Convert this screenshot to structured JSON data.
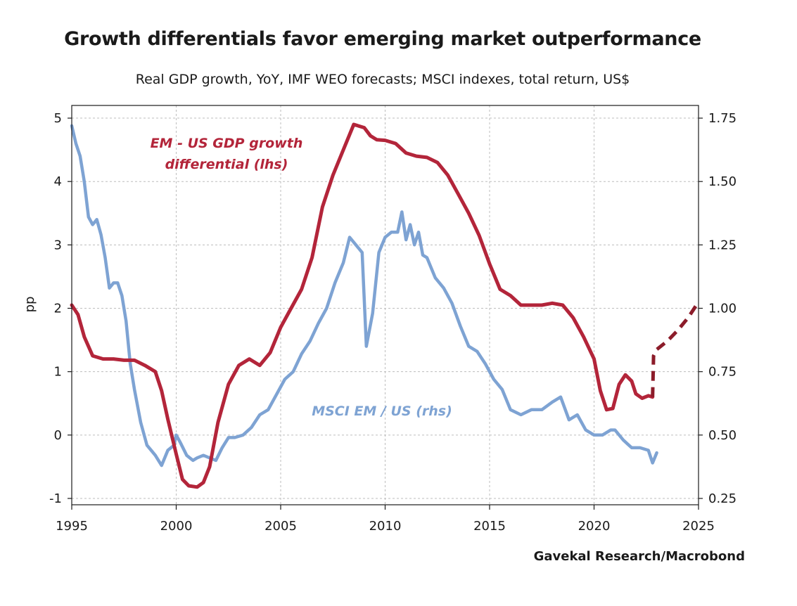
{
  "chart_data": {
    "type": "line",
    "title": "Growth differentials favor emerging market outperformance",
    "subtitle": "Real GDP growth, YoY, IMF WEO forecasts; MSCI indexes, total return, US$",
    "source": "Gavekal Research/Macrobond",
    "xlim": [
      1995,
      2025
    ],
    "x_ticks": [
      "1995",
      "2000",
      "2005",
      "2010",
      "2015",
      "2020",
      "2025"
    ],
    "y_left": {
      "label": "pp",
      "lim": [
        -1.1,
        5.2
      ],
      "ticks": [
        "-1",
        "0",
        "1",
        "2",
        "3",
        "4",
        "5"
      ]
    },
    "y_right": {
      "label": "",
      "lim": [
        0.225,
        1.8
      ],
      "ticks": [
        "0.25",
        "0.50",
        "0.75",
        "1.00",
        "1.25",
        "1.50",
        "1.75"
      ]
    },
    "grid": true,
    "series": [
      {
        "name": "EM - US GDP growth differential (lhs)",
        "axis": "left",
        "color": "#b3253a",
        "style": "solid",
        "x": [
          1995.0,
          1995.3,
          1995.6,
          1996.0,
          1996.5,
          1997.0,
          1997.5,
          1998.0,
          1998.5,
          1999.0,
          1999.3,
          1999.6,
          2000.0,
          2000.3,
          2000.6,
          2001.0,
          2001.3,
          2001.6,
          2002.0,
          2002.5,
          2003.0,
          2003.5,
          2004.0,
          2004.5,
          2005.0,
          2005.5,
          2006.0,
          2006.5,
          2007.0,
          2007.5,
          2008.0,
          2008.5,
          2009.0,
          2009.3,
          2009.6,
          2010.0,
          2010.5,
          2011.0,
          2011.5,
          2012.0,
          2012.5,
          2013.0,
          2013.5,
          2014.0,
          2014.5,
          2015.0,
          2015.5,
          2016.0,
          2016.5,
          2017.0,
          2017.5,
          2018.0,
          2018.5,
          2019.0,
          2019.5,
          2020.0,
          2020.3,
          2020.6,
          2020.9,
          2021.2,
          2021.5,
          2021.8,
          2022.0,
          2022.3,
          2022.6,
          2022.8
        ],
        "values": [
          2.05,
          1.9,
          1.55,
          1.25,
          1.2,
          1.2,
          1.18,
          1.18,
          1.1,
          1.0,
          0.7,
          0.25,
          -0.3,
          -0.7,
          -0.8,
          -0.82,
          -0.75,
          -0.5,
          0.2,
          0.8,
          1.1,
          1.2,
          1.1,
          1.3,
          1.7,
          2.0,
          2.3,
          2.8,
          3.6,
          4.1,
          4.5,
          4.9,
          4.85,
          4.72,
          4.66,
          4.65,
          4.6,
          4.45,
          4.4,
          4.38,
          4.3,
          4.1,
          3.8,
          3.5,
          3.15,
          2.7,
          2.3,
          2.2,
          2.05,
          2.05,
          2.05,
          2.08,
          2.05,
          1.85,
          1.55,
          1.2,
          0.7,
          0.4,
          0.42,
          0.8,
          0.95,
          0.85,
          0.65,
          0.58,
          0.62,
          0.6
        ]
      },
      {
        "name": "EM - US GDP growth differential forecast",
        "axis": "left",
        "color": "#8c1c2a",
        "style": "dashed",
        "x": [
          2022.8,
          2022.85,
          2023.0,
          2023.5,
          2024.0,
          2024.5,
          2025.0
        ],
        "values": [
          0.6,
          1.25,
          1.35,
          1.48,
          1.65,
          1.85,
          2.1
        ]
      },
      {
        "name": "MSCI EM / US (rhs)",
        "axis": "right",
        "color": "#7ea3d3",
        "style": "solid",
        "x": [
          1995.0,
          1995.2,
          1995.4,
          1995.6,
          1995.8,
          1996.0,
          1996.2,
          1996.4,
          1996.6,
          1996.8,
          1997.0,
          1997.2,
          1997.4,
          1997.6,
          1997.8,
          1998.0,
          1998.3,
          1998.6,
          1998.8,
          1999.0,
          1999.3,
          1999.6,
          1999.9,
          2000.0,
          2000.2,
          2000.5,
          2000.8,
          2001.0,
          2001.3,
          2001.6,
          2001.9,
          2002.2,
          2002.5,
          2002.8,
          2003.2,
          2003.6,
          2004.0,
          2004.4,
          2004.8,
          2005.2,
          2005.6,
          2006.0,
          2006.4,
          2006.8,
          2007.2,
          2007.6,
          2008.0,
          2008.3,
          2008.6,
          2008.9,
          2009.1,
          2009.4,
          2009.7,
          2010.0,
          2010.3,
          2010.6,
          2010.8,
          2011.0,
          2011.2,
          2011.4,
          2011.6,
          2011.8,
          2012.0,
          2012.4,
          2012.8,
          2013.2,
          2013.6,
          2014.0,
          2014.4,
          2014.8,
          2015.2,
          2015.6,
          2016.0,
          2016.5,
          2017.0,
          2017.5,
          2018.0,
          2018.4,
          2018.8,
          2019.2,
          2019.6,
          2020.0,
          2020.4,
          2020.8,
          2021.0,
          2021.4,
          2021.8,
          2022.2,
          2022.6,
          2022.8,
          2023.0
        ],
        "values": [
          1.72,
          1.65,
          1.6,
          1.5,
          1.36,
          1.33,
          1.35,
          1.29,
          1.2,
          1.08,
          1.1,
          1.1,
          1.05,
          0.95,
          0.78,
          0.68,
          0.55,
          0.46,
          0.44,
          0.42,
          0.38,
          0.44,
          0.46,
          0.5,
          0.47,
          0.42,
          0.4,
          0.41,
          0.42,
          0.41,
          0.4,
          0.45,
          0.49,
          0.49,
          0.5,
          0.53,
          0.58,
          0.6,
          0.66,
          0.72,
          0.75,
          0.82,
          0.87,
          0.94,
          1.0,
          1.1,
          1.18,
          1.28,
          1.25,
          1.22,
          0.85,
          0.98,
          1.22,
          1.28,
          1.3,
          1.3,
          1.38,
          1.27,
          1.33,
          1.25,
          1.3,
          1.21,
          1.2,
          1.12,
          1.08,
          1.02,
          0.93,
          0.85,
          0.83,
          0.78,
          0.72,
          0.68,
          0.6,
          0.58,
          0.6,
          0.6,
          0.63,
          0.65,
          0.56,
          0.58,
          0.52,
          0.5,
          0.5,
          0.52,
          0.52,
          0.48,
          0.45,
          0.45,
          0.44,
          0.39,
          0.43
        ]
      }
    ],
    "annotations": [
      {
        "id": "em",
        "lines": [
          "EM - US GDP growth",
          "differential (lhs)"
        ]
      },
      {
        "id": "msci",
        "lines": [
          "MSCI EM / US (rhs)"
        ]
      }
    ]
  }
}
